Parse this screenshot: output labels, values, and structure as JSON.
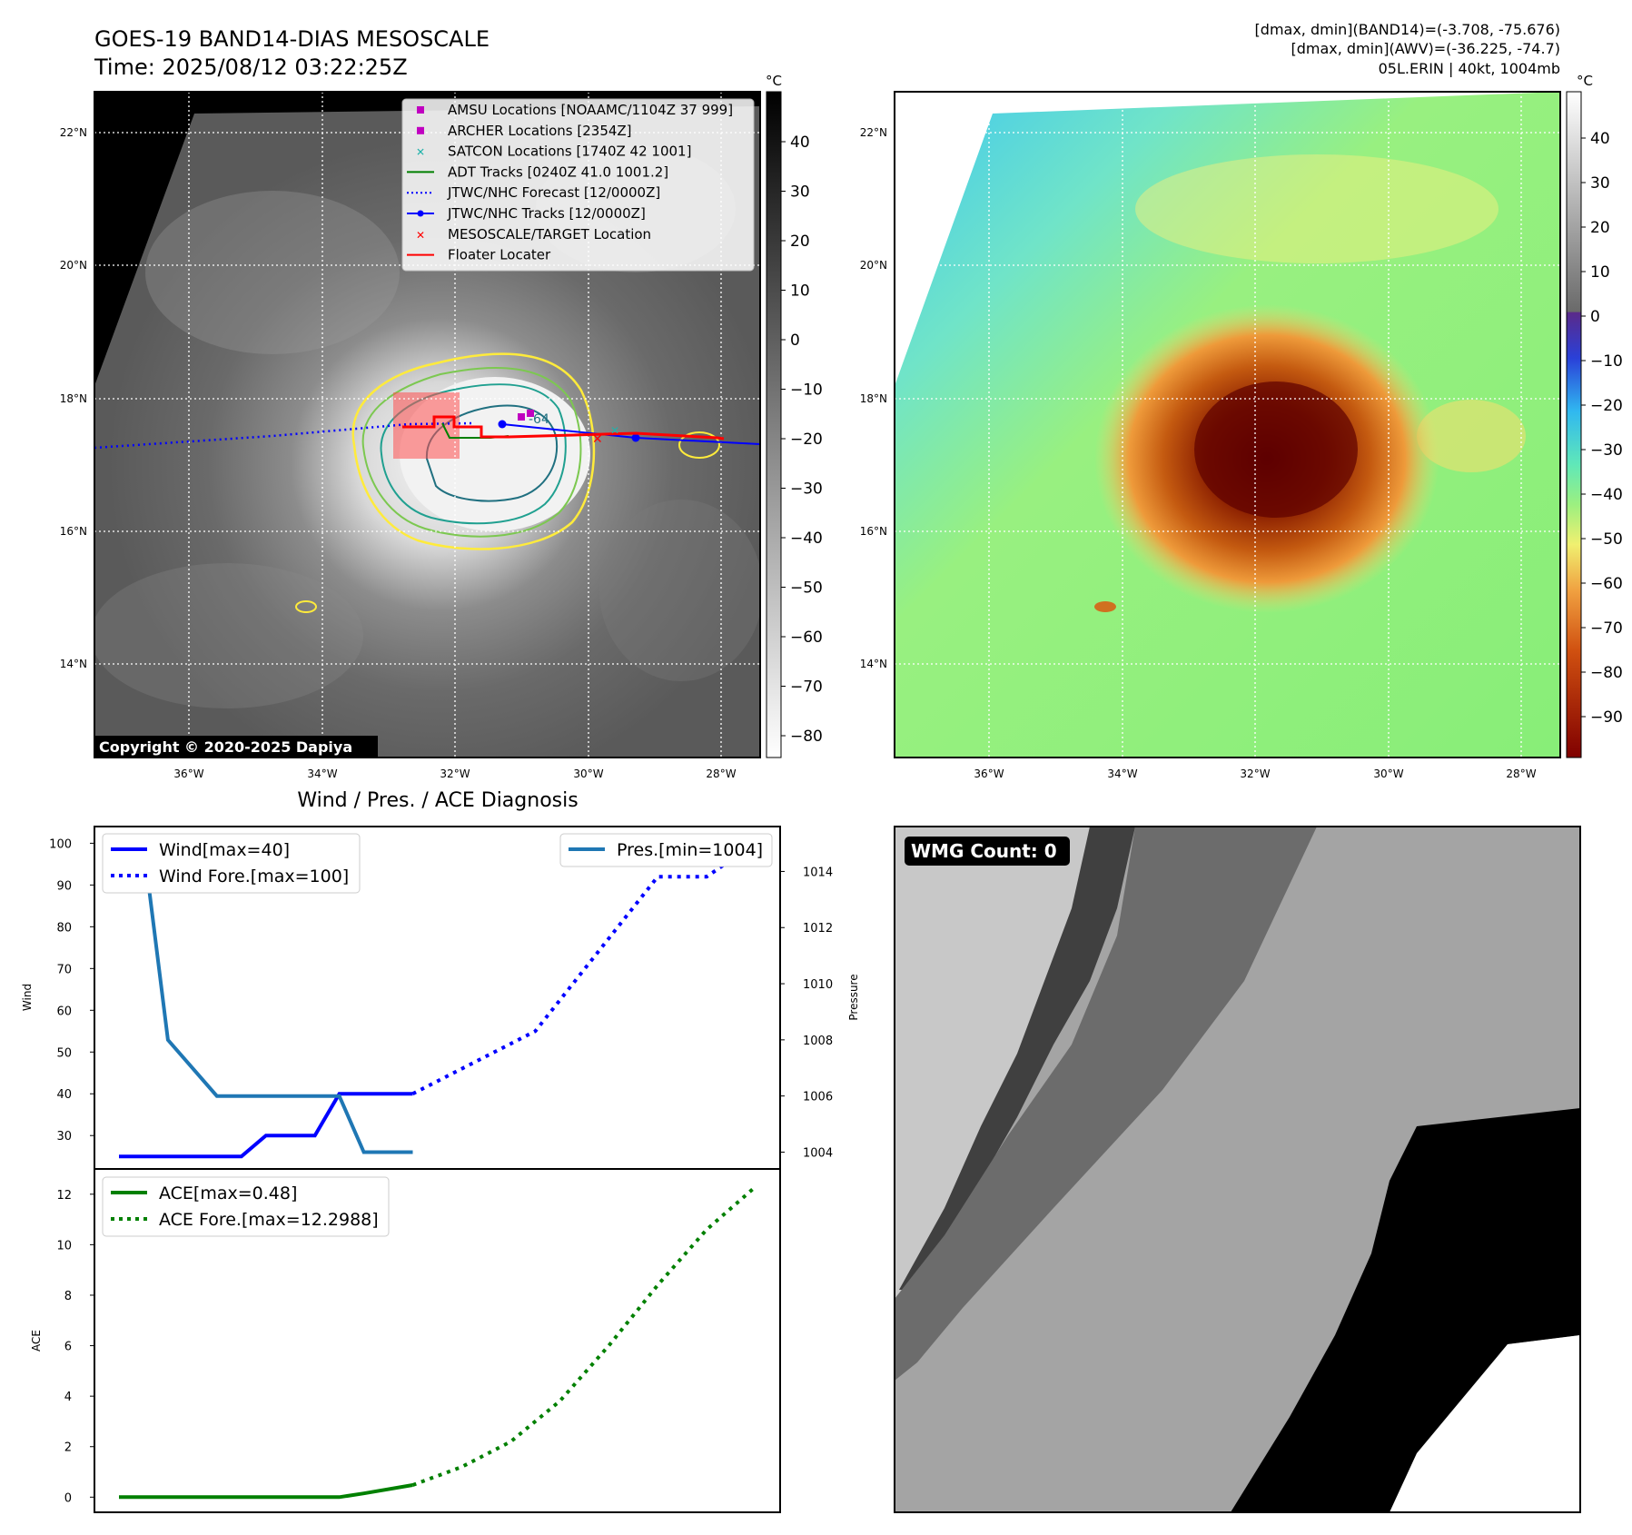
{
  "header": {
    "title_line1": "GOES-19 BAND14-DIAS MESOSCALE",
    "title_line2": "Time: 2025/08/12 03:22:25Z",
    "info_line1": "[dmax, dmin](BAND14)=(-3.708, -75.676)",
    "info_line2": "[dmax, dmin](AWV)=(-36.225, -74.7)",
    "info_line3": "05L.ERIN | 40kt, 1004mb"
  },
  "ir_panel": {
    "copyright": "Copyright © 2020-2025 Dapiya",
    "legend": [
      {
        "label": "AMSU Locations [NOAAMC/1104Z 37 999]",
        "color": "#c000c0",
        "marker": "square"
      },
      {
        "label": "ARCHER Locations [2354Z]",
        "color": "#c000c0",
        "marker": "square"
      },
      {
        "label": "SATCON Locations [1740Z 42 1001]",
        "color": "#20b2aa",
        "marker": "x"
      },
      {
        "label": "ADT Tracks [0240Z 41.0 1001.2]",
        "color": "#008000",
        "marker": "line"
      },
      {
        "label": "JTWC/NHC Forecast [12/0000Z]",
        "color": "#0000ff",
        "marker": "dotted"
      },
      {
        "label": "JTWC/NHC Tracks [12/0000Z]",
        "color": "#0000ff",
        "marker": "line-dot"
      },
      {
        "label": "MESOSCALE/TARGET Location",
        "color": "#ff0000",
        "marker": "x"
      },
      {
        "label": "Floater Locater",
        "color": "#ff0000",
        "marker": "line"
      }
    ],
    "contour_label": "-64",
    "colorbar_unit": "°C",
    "colorbar_ticks": [
      "40",
      "30",
      "20",
      "10",
      "0",
      "−10",
      "−20",
      "−30",
      "−40",
      "−50",
      "−60",
      "−70",
      "−80"
    ]
  },
  "wv_panel": {
    "colorbar_unit": "°C",
    "colorbar_ticks": [
      "40",
      "30",
      "20",
      "10",
      "0",
      "−10",
      "−20",
      "−30",
      "−40",
      "−50",
      "−60",
      "−70",
      "−80",
      "−90"
    ]
  },
  "map_axes": {
    "lat_ticks": [
      "22°N",
      "20°N",
      "18°N",
      "16°N",
      "14°N"
    ],
    "lon_ticks": [
      "36°W",
      "34°W",
      "32°W",
      "30°W",
      "28°W"
    ]
  },
  "wmg_panel": {
    "badge": "WMG Count: 0"
  },
  "chart_data": [
    {
      "type": "line",
      "title": "Wind / Pres. / ACE Diagnosis",
      "ylabel": "Wind",
      "ylabel_right": "Pressure",
      "ylim": [
        22,
        104
      ],
      "ylim_right": [
        1003.4,
        1015.6
      ],
      "yticks": [
        30,
        40,
        50,
        60,
        70,
        80,
        90,
        100
      ],
      "yticks_right": [
        1004,
        1006,
        1008,
        1010,
        1012,
        1014
      ],
      "xlim": [
        0,
        28
      ],
      "series": [
        {
          "name": "Wind[max=40]",
          "axis": "left",
          "color": "#0000ff",
          "style": "solid",
          "x": [
            1,
            2,
            3,
            4,
            5,
            6,
            7,
            8,
            9,
            10,
            11,
            12,
            13
          ],
          "y": [
            25,
            25,
            25,
            25,
            25,
            25,
            30,
            30,
            30,
            40,
            40,
            40,
            40
          ]
        },
        {
          "name": "Wind Fore.[max=100]",
          "axis": "left",
          "color": "#0000ff",
          "style": "dotted",
          "x": [
            13,
            18,
            23,
            25,
            27
          ],
          "y": [
            40,
            55,
            92,
            92,
            100
          ]
        },
        {
          "name": "Pres.[min=1004]",
          "axis": "right",
          "color": "#1f77b4",
          "style": "solid",
          "x": [
            1,
            2,
            3,
            5,
            7,
            8,
            9,
            10,
            11,
            13
          ],
          "y": [
            1015,
            1015,
            1008,
            1006,
            1006,
            1006,
            1006,
            1006,
            1004,
            1004
          ]
        }
      ]
    },
    {
      "type": "line",
      "ylabel": "ACE",
      "ylim": [
        -0.6,
        13
      ],
      "yticks": [
        0,
        2,
        4,
        6,
        8,
        10,
        12
      ],
      "xlim": [
        0,
        28
      ],
      "series": [
        {
          "name": "ACE[max=0.48]",
          "color": "#008000",
          "style": "solid",
          "x": [
            1,
            2,
            3,
            4,
            5,
            6,
            7,
            8,
            9,
            10,
            11,
            13
          ],
          "y": [
            0,
            0,
            0,
            0,
            0,
            0,
            0,
            0,
            0,
            0,
            0.15,
            0.48
          ]
        },
        {
          "name": "ACE Fore.[max=12.2988]",
          "color": "#008000",
          "style": "dotted",
          "x": [
            13,
            15,
            17,
            19,
            21,
            23,
            25,
            27
          ],
          "y": [
            0.48,
            1.2,
            2.2,
            3.8,
            6.0,
            8.4,
            10.6,
            12.3
          ]
        }
      ]
    }
  ]
}
